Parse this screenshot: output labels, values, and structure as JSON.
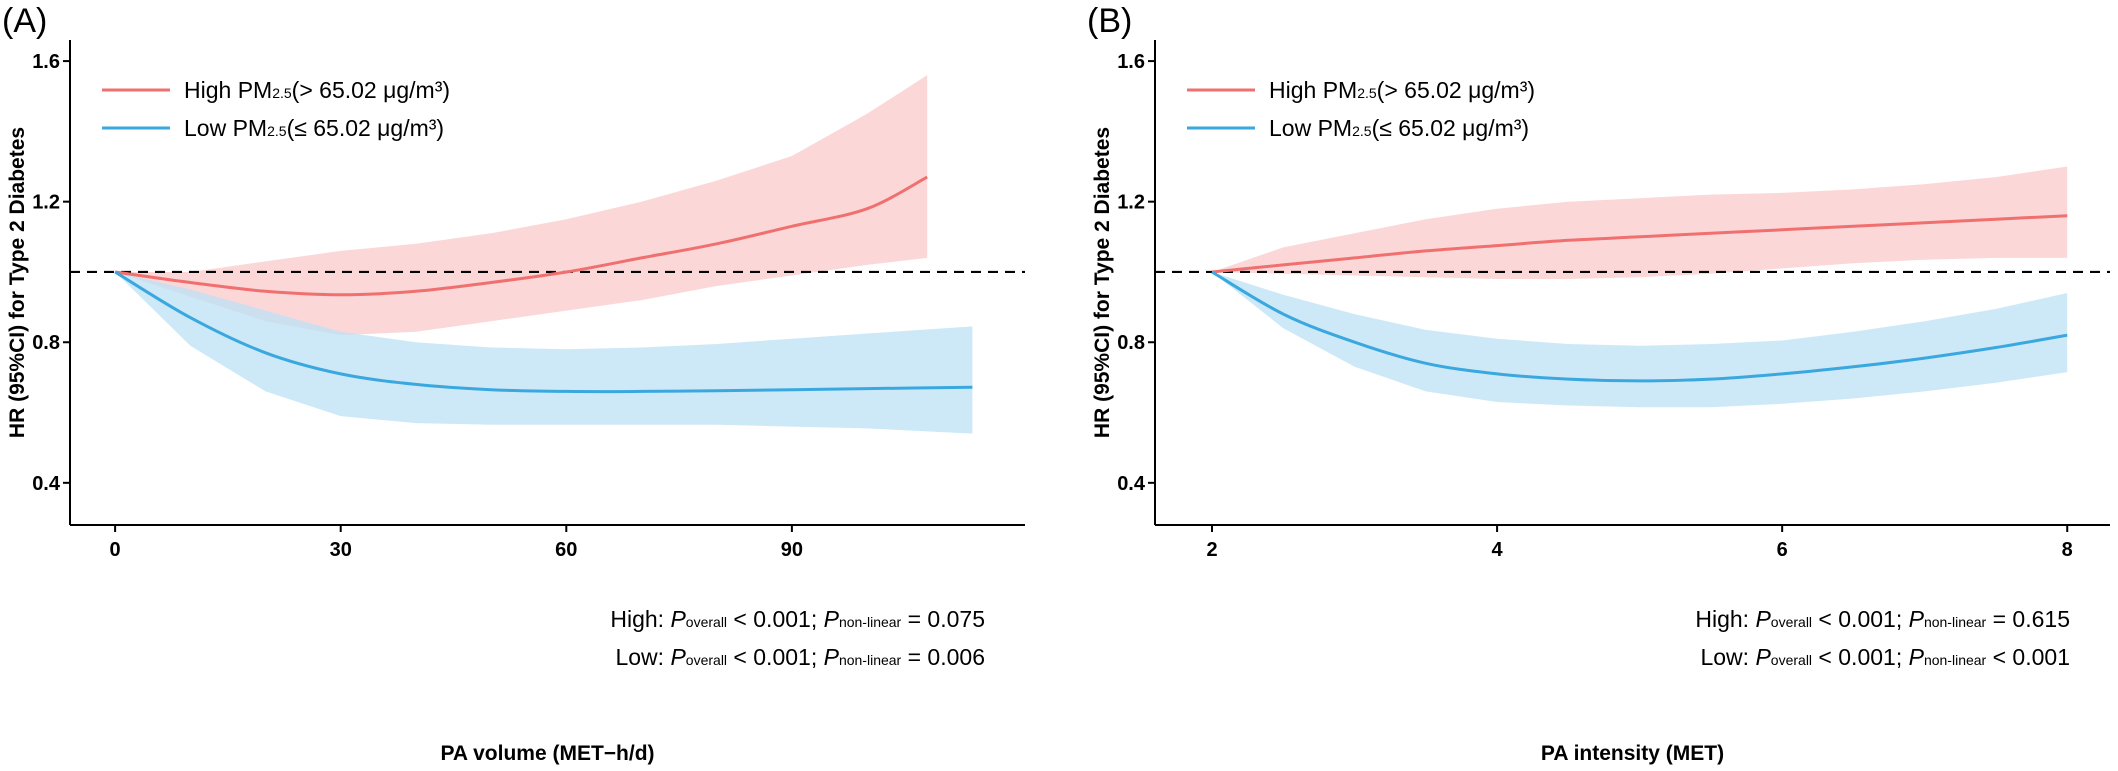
{
  "chart_data": [
    {
      "type": "line",
      "panel_label": "(A)",
      "xlabel": "PA volume (MET−h/d)",
      "ylabel": "HR (95%CI) for Type 2 Diabetes",
      "xlim": [
        -6,
        121
      ],
      "ylim": [
        0.28,
        1.66
      ],
      "xticks": [
        0,
        30,
        60,
        90
      ],
      "xtick_labels": [
        "0",
        "30",
        "60",
        "90"
      ],
      "yticks": [
        0.4,
        0.8,
        1.2,
        1.6
      ],
      "ytick_labels": [
        "0.4",
        "0.8",
        "1.2",
        "1.6"
      ],
      "reference_line": 1.0,
      "legend": {
        "position": "top-left",
        "entries": [
          {
            "prefix": "High PM",
            "sub": "2.5",
            "suffix": "(> 65.02 μg/m³)"
          },
          {
            "prefix": "Low PM",
            "sub": "2.5",
            "suffix": "(≤ 65.02 μg/m³)"
          }
        ]
      },
      "annotations": [
        {
          "group": "High:",
          "p_overall_label": "P",
          "p_overall_sub": "overall",
          "p_overall_val": " < 0.001; ",
          "p_nonlin_label": "P",
          "p_nonlin_sub": "non-linear",
          "p_nonlin_val": " = 0.075"
        },
        {
          "group": "Low:",
          "p_overall_label": "P",
          "p_overall_sub": "overall",
          "p_overall_val": " < 0.001; ",
          "p_nonlin_label": "P",
          "p_nonlin_sub": "non-linear",
          "p_nonlin_val": " = 0.006"
        }
      ],
      "series": [
        {
          "name": "High PM2.5",
          "color": "#F07070",
          "band_color": "#FAC9C9",
          "x": [
            0,
            10,
            20,
            30,
            40,
            50,
            60,
            70,
            80,
            90,
            100,
            108
          ],
          "y": [
            1.0,
            0.97,
            0.945,
            0.935,
            0.945,
            0.97,
            1.0,
            1.04,
            1.08,
            1.13,
            1.18,
            1.27
          ],
          "lower": [
            1.0,
            0.93,
            0.86,
            0.82,
            0.83,
            0.86,
            0.89,
            0.92,
            0.96,
            0.99,
            1.02,
            1.04
          ],
          "upper": [
            1.0,
            1.0,
            1.03,
            1.06,
            1.08,
            1.11,
            1.15,
            1.2,
            1.26,
            1.33,
            1.45,
            1.56
          ]
        },
        {
          "name": "Low PM2.5",
          "color": "#3AA8DF",
          "band_color": "#BCE2F6",
          "x": [
            0,
            10,
            20,
            30,
            40,
            50,
            60,
            70,
            80,
            90,
            100,
            114
          ],
          "y": [
            1.0,
            0.87,
            0.77,
            0.71,
            0.68,
            0.665,
            0.66,
            0.66,
            0.662,
            0.665,
            0.668,
            0.672
          ],
          "lower": [
            1.0,
            0.79,
            0.66,
            0.59,
            0.57,
            0.565,
            0.565,
            0.565,
            0.565,
            0.56,
            0.555,
            0.54
          ],
          "upper": [
            1.0,
            0.95,
            0.89,
            0.83,
            0.8,
            0.785,
            0.78,
            0.785,
            0.795,
            0.81,
            0.825,
            0.845
          ]
        }
      ]
    },
    {
      "type": "line",
      "panel_label": "(B)",
      "xlabel": "PA intensity (MET)",
      "ylabel": "HR (95%CI) for Type 2 Diabetes",
      "xlim": [
        1.6,
        8.3
      ],
      "ylim": [
        0.28,
        1.66
      ],
      "xticks": [
        2,
        4,
        6,
        8
      ],
      "xtick_labels": [
        "2",
        "4",
        "6",
        "8"
      ],
      "yticks": [
        0.4,
        0.8,
        1.2,
        1.6
      ],
      "ytick_labels": [
        "0.4",
        "0.8",
        "1.2",
        "1.6"
      ],
      "reference_line": 1.0,
      "legend": {
        "position": "top-left",
        "entries": [
          {
            "prefix": "High PM",
            "sub": "2.5",
            "suffix": "(> 65.02 μg/m³)"
          },
          {
            "prefix": "Low PM",
            "sub": "2.5",
            "suffix": "(≤ 65.02 μg/m³)"
          }
        ]
      },
      "annotations": [
        {
          "group": "High:",
          "p_overall_label": "P",
          "p_overall_sub": "overall",
          "p_overall_val": " < 0.001; ",
          "p_nonlin_label": "P",
          "p_nonlin_sub": "non-linear",
          "p_nonlin_val": " = 0.615"
        },
        {
          "group": "Low:",
          "p_overall_label": "P",
          "p_overall_sub": "overall",
          "p_overall_val": " < 0.001; ",
          "p_nonlin_label": "P",
          "p_nonlin_sub": "non-linear",
          "p_nonlin_val": " < 0.001"
        }
      ],
      "series": [
        {
          "name": "High PM2.5",
          "color": "#F07070",
          "band_color": "#FAC9C9",
          "x": [
            2,
            2.5,
            3,
            3.5,
            4,
            4.5,
            5,
            5.5,
            6,
            6.5,
            7,
            7.5,
            8
          ],
          "y": [
            1.0,
            1.02,
            1.04,
            1.06,
            1.075,
            1.09,
            1.1,
            1.11,
            1.12,
            1.13,
            1.14,
            1.15,
            1.16
          ],
          "lower": [
            1.0,
            0.995,
            0.99,
            0.985,
            0.98,
            0.98,
            0.985,
            0.995,
            1.01,
            1.025,
            1.035,
            1.04,
            1.04
          ],
          "upper": [
            1.0,
            1.07,
            1.11,
            1.15,
            1.18,
            1.2,
            1.21,
            1.22,
            1.225,
            1.235,
            1.25,
            1.27,
            1.3
          ]
        },
        {
          "name": "Low PM2.5",
          "color": "#3AA8DF",
          "band_color": "#BCE2F6",
          "x": [
            2,
            2.5,
            3,
            3.5,
            4,
            4.5,
            5,
            5.5,
            6,
            6.5,
            7,
            7.5,
            8
          ],
          "y": [
            1.0,
            0.88,
            0.8,
            0.74,
            0.71,
            0.695,
            0.69,
            0.695,
            0.71,
            0.73,
            0.755,
            0.785,
            0.82
          ],
          "lower": [
            1.0,
            0.84,
            0.73,
            0.66,
            0.63,
            0.62,
            0.615,
            0.615,
            0.625,
            0.64,
            0.66,
            0.685,
            0.715
          ],
          "upper": [
            1.0,
            0.935,
            0.88,
            0.835,
            0.81,
            0.795,
            0.79,
            0.795,
            0.805,
            0.83,
            0.86,
            0.895,
            0.94
          ]
        }
      ]
    }
  ]
}
